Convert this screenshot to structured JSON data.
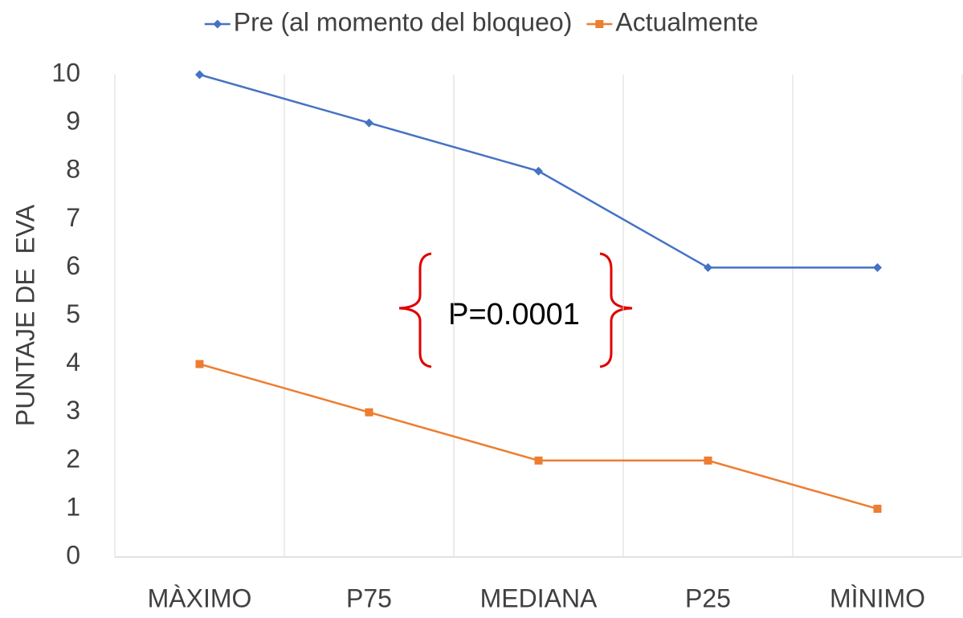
{
  "chart_data": {
    "type": "line",
    "y_label": "PUNTAJE DE  EVA",
    "categories": [
      "MÀXIMO",
      "P75",
      "MEDIANA",
      "P25",
      "MÌNIMO"
    ],
    "series": [
      {
        "name": "Pre (al momento del bloqueo)",
        "color": "#4472c4",
        "marker": "diamond",
        "values": [
          10,
          9,
          8,
          6,
          6
        ]
      },
      {
        "name": "Actualmente",
        "color": "#ed7d31",
        "marker": "square",
        "values": [
          4,
          3,
          2,
          2,
          1
        ]
      }
    ],
    "ylim": [
      0,
      10
    ],
    "yticks": [
      0,
      1,
      2,
      3,
      4,
      5,
      6,
      7,
      8,
      9,
      10
    ],
    "grid": "x",
    "legend": "top",
    "annotation": "P=0.0001"
  }
}
